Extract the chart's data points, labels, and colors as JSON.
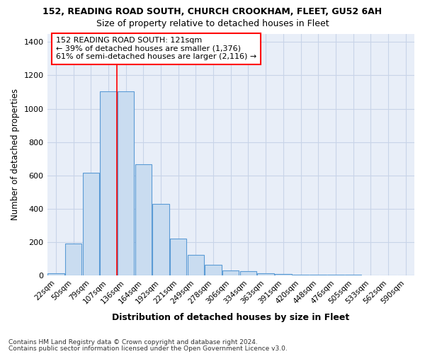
{
  "title1": "152, READING ROAD SOUTH, CHURCH CROOKHAM, FLEET, GU52 6AH",
  "title2": "Size of property relative to detached houses in Fleet",
  "xlabel": "Distribution of detached houses by size in Fleet",
  "ylabel": "Number of detached properties",
  "bin_labels": [
    "22sqm",
    "50sqm",
    "79sqm",
    "107sqm",
    "136sqm",
    "164sqm",
    "192sqm",
    "221sqm",
    "249sqm",
    "278sqm",
    "306sqm",
    "334sqm",
    "363sqm",
    "391sqm",
    "420sqm",
    "448sqm",
    "476sqm",
    "505sqm",
    "533sqm",
    "562sqm",
    "590sqm"
  ],
  "bar_heights": [
    15,
    190,
    615,
    1105,
    1105,
    665,
    430,
    220,
    125,
    65,
    30,
    25,
    15,
    8,
    5,
    4,
    3,
    3,
    2,
    2,
    2
  ],
  "bar_color": "#c9dcf0",
  "bar_edge_color": "#5b9bd5",
  "grid_color": "#c8d4e8",
  "background_color": "#e8eef8",
  "red_line_index": 4,
  "annotation_text": "152 READING ROAD SOUTH: 121sqm\n← 39% of detached houses are smaller (1,376)\n61% of semi-detached houses are larger (2,116) →",
  "ylim": [
    0,
    1450
  ],
  "yticks": [
    0,
    200,
    400,
    600,
    800,
    1000,
    1200,
    1400
  ],
  "footer1": "Contains HM Land Registry data © Crown copyright and database right 2024.",
  "footer2": "Contains public sector information licensed under the Open Government Licence v3.0."
}
